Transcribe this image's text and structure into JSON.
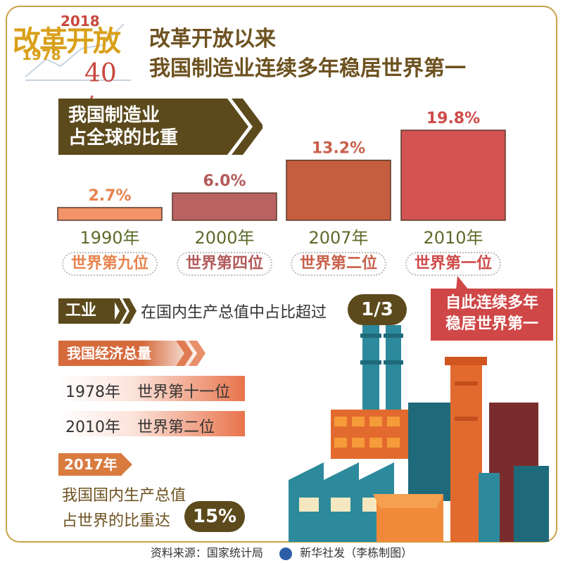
{
  "logo": {
    "text_main": "改革开放",
    "year_end": "2018",
    "year_start": "1978",
    "years": "40年"
  },
  "title": {
    "line1": "改革开放以来",
    "line2": "我国制造业连续多年稳居世界第一"
  },
  "banner": {
    "line1": "我国制造业",
    "line2": "占全球的比重"
  },
  "chart_data": {
    "type": "bar",
    "categories": [
      "1990年",
      "2000年",
      "2007年",
      "2010年"
    ],
    "values": [
      2.7,
      6.0,
      13.2,
      19.8
    ],
    "value_labels": [
      "2.7%",
      "6.0%",
      "13.2%",
      "19.8%"
    ],
    "ranks": [
      "世界第九位",
      "世界第四位",
      "世界第二位",
      "世界第一位"
    ],
    "colors": [
      "#f2936a",
      "#b86262",
      "#c55e3f",
      "#d35353"
    ],
    "label_colors": [
      "#e8834e",
      "#b25a5a",
      "#c8604a",
      "#cf4a4a"
    ],
    "ylim": [
      0,
      19.8
    ]
  },
  "callout": {
    "line1": "自此连续多年",
    "line2": "稳居世界第一"
  },
  "industry": {
    "tag": "工业",
    "text": "在国内生产总值中占比超过",
    "value": "1/3"
  },
  "economy": {
    "tag": "我国经济总量",
    "rows": [
      {
        "year": "1978年",
        "rank": "世界第十一位"
      },
      {
        "year": "2010年",
        "rank": "世界第二位"
      }
    ]
  },
  "y2017": {
    "tag": "2017年",
    "line1": "我国国内生产总值",
    "line2": "占世界的比重达",
    "value": "15%"
  },
  "footer": {
    "source": "资料来源：国家统计局",
    "credit": "新华社发（李栋制图）"
  }
}
